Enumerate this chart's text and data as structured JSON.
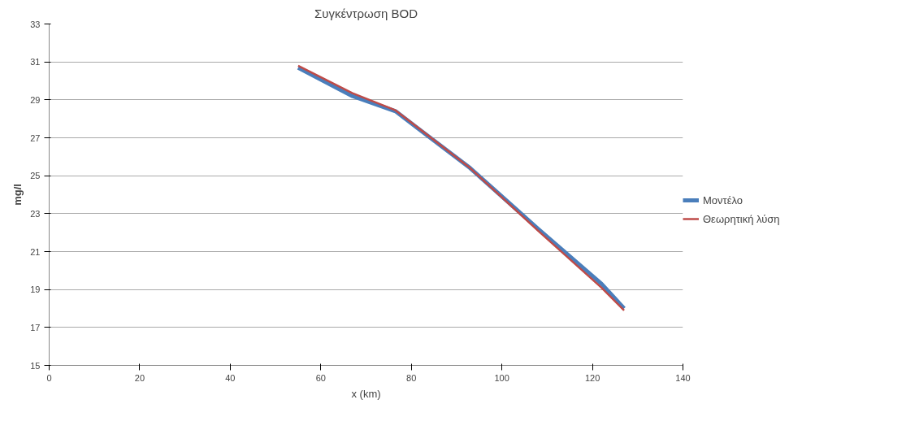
{
  "chart_data": {
    "type": "line",
    "title": "Συγκέντρωση BOD",
    "xlabel": "x (km)",
    "ylabel": "mg/l",
    "xlim": [
      0,
      140
    ],
    "xticks": [
      0,
      20,
      40,
      60,
      80,
      100,
      120,
      140
    ],
    "ylim": [
      15,
      33
    ],
    "yticks": [
      15,
      17,
      19,
      21,
      23,
      25,
      27,
      29,
      31,
      33
    ],
    "grid": "y",
    "legend": "right",
    "marker": "none",
    "line_style": "solid",
    "series": [
      {
        "name": "Μοντέλο",
        "color": "#4a7ebb",
        "x": [
          55,
          67,
          76.5,
          93,
          108,
          122,
          127
        ],
        "values": [
          30.7,
          29.2,
          28.4,
          25.4,
          22.2,
          19.3,
          18.0
        ]
      },
      {
        "name": "Θεωρητική λύση",
        "color": "#be4b48",
        "x": [
          55,
          67,
          76.5,
          93,
          108,
          122,
          127
        ],
        "values": [
          30.8,
          29.35,
          28.45,
          25.4,
          22.1,
          19.1,
          17.9
        ]
      }
    ]
  }
}
